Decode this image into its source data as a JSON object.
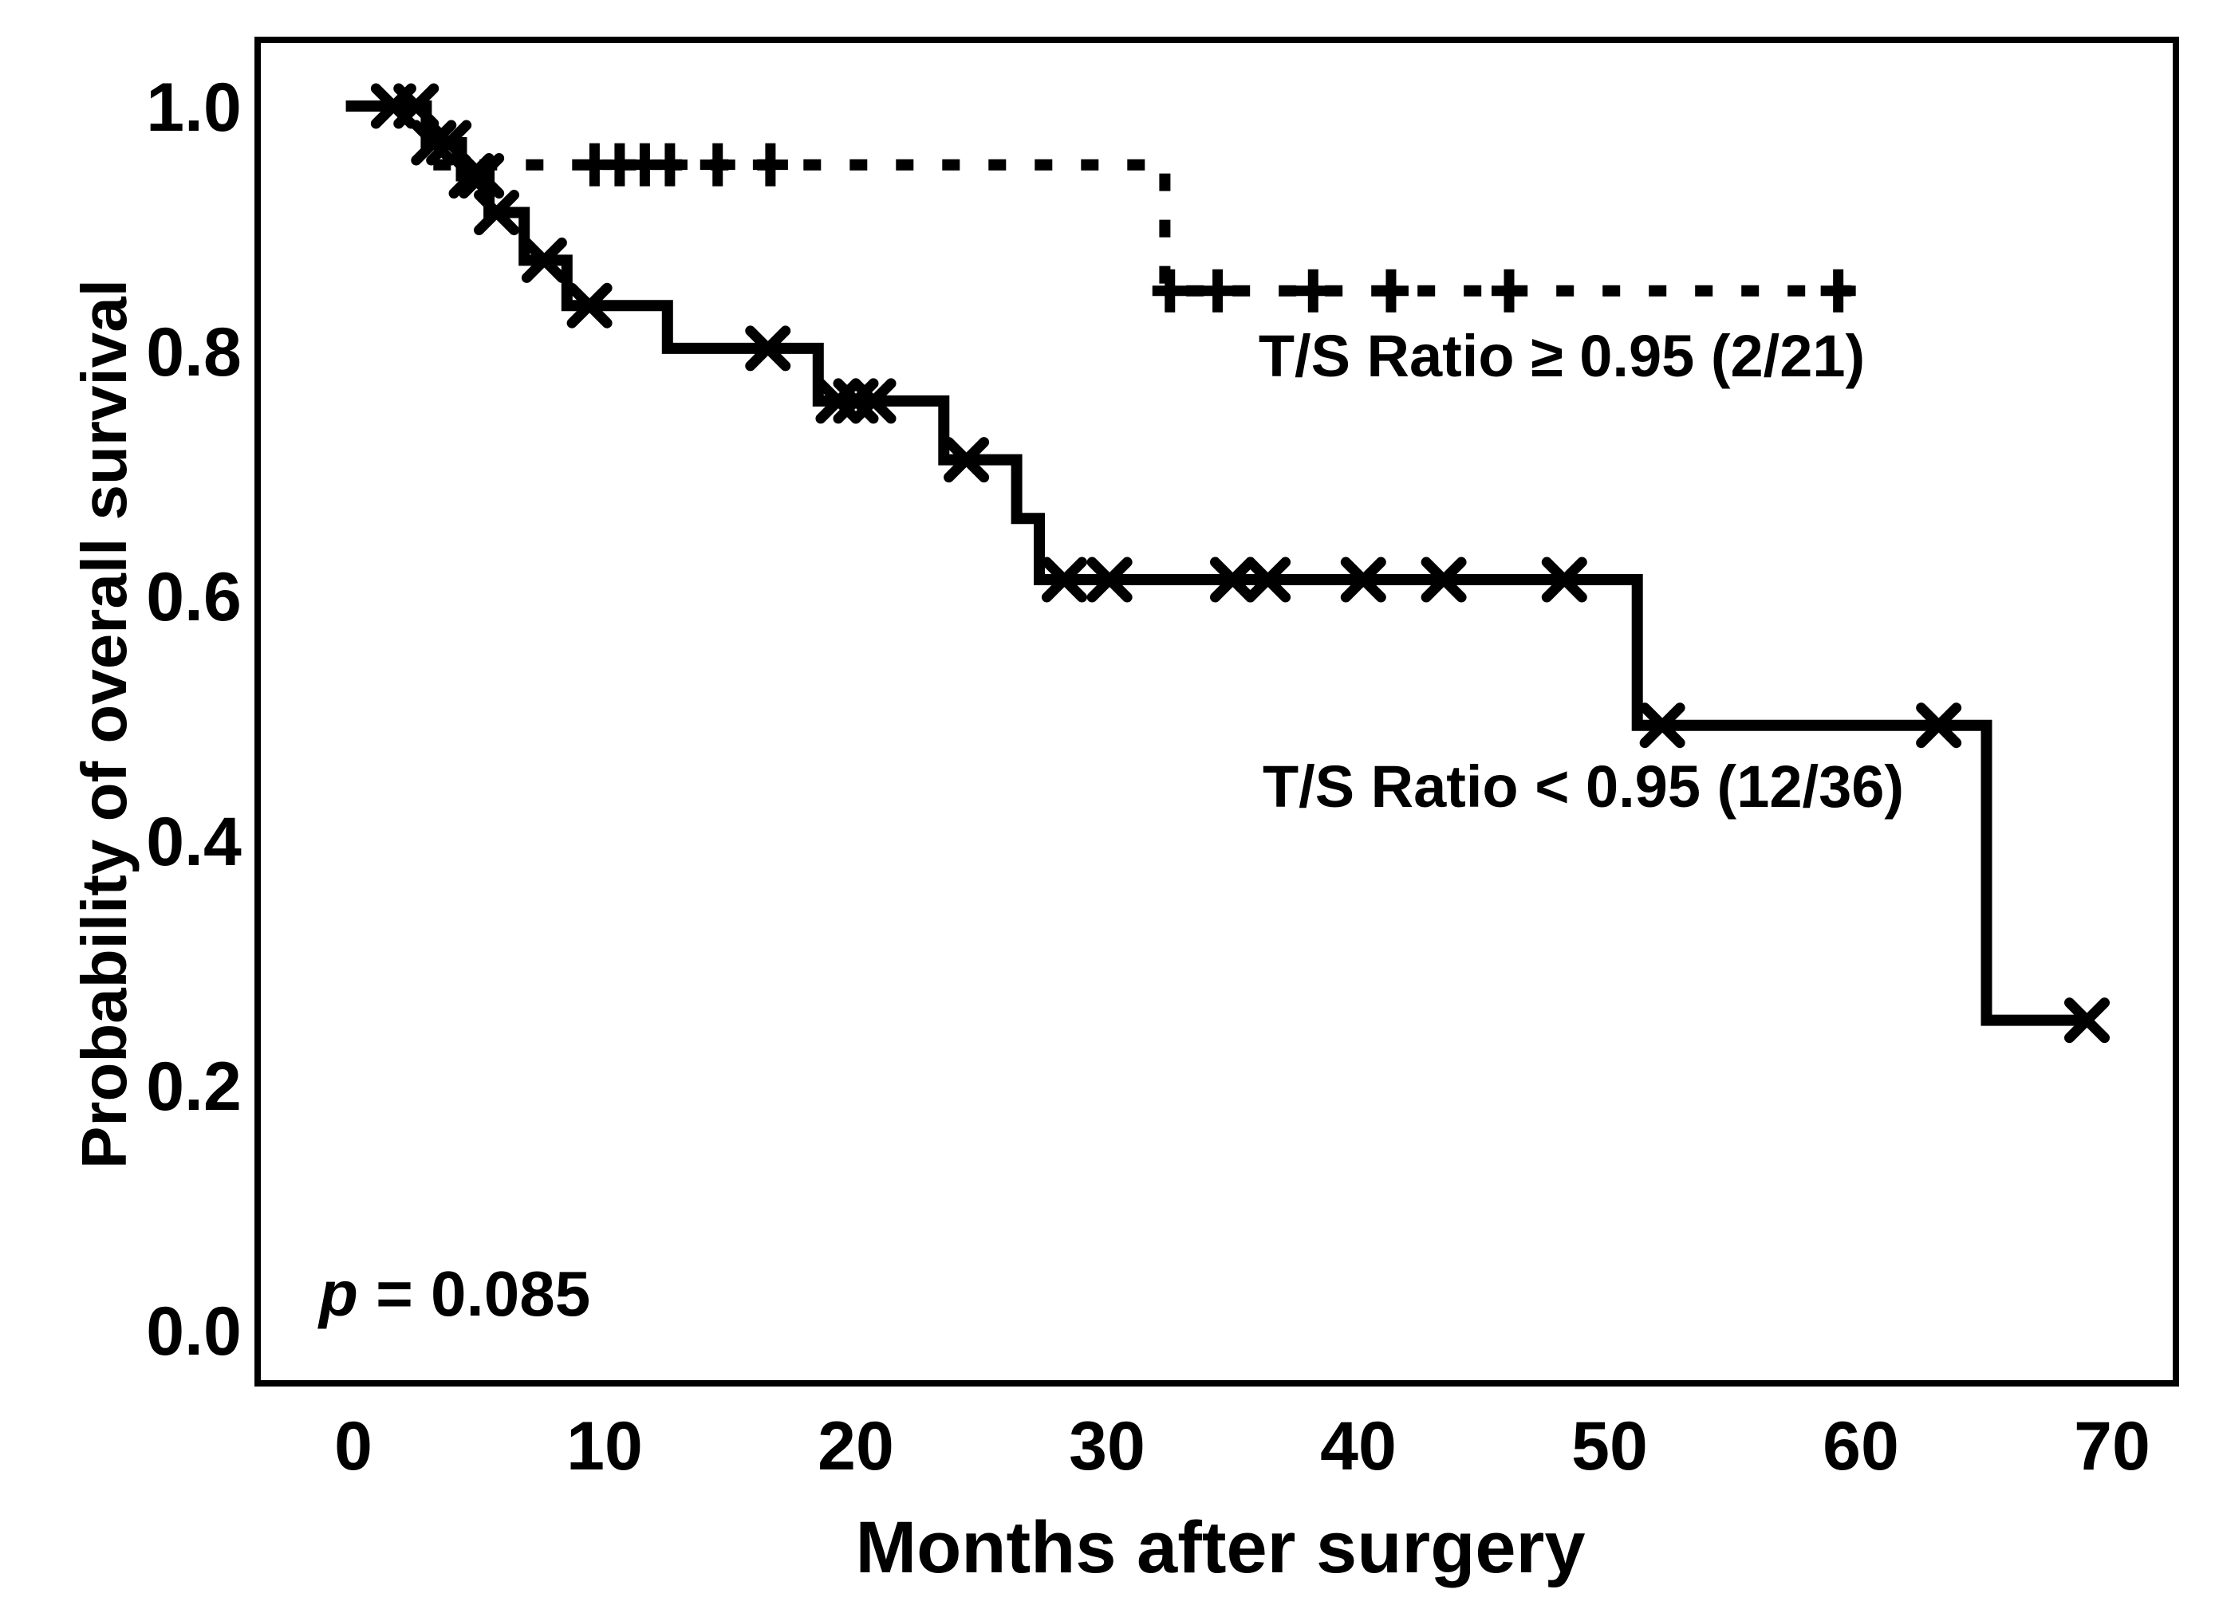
{
  "figure": {
    "background_color": "#ffffff",
    "ink_color": "#000000",
    "p_value_label": {
      "italic_part": "p",
      "rest_part": " = 0.085"
    }
  },
  "chart_data": {
    "type": "line",
    "subtype": "kaplan_meier_step",
    "title": "",
    "xlabel": "Months after surgery",
    "ylabel": "Probability of overall survival",
    "xlim": [
      0,
      72
    ],
    "ylim": [
      0.0,
      1.05
    ],
    "x_ticks": [
      "0",
      "10",
      "20",
      "30",
      "40",
      "50",
      "60",
      "70"
    ],
    "x_tick_values": [
      0,
      10,
      20,
      30,
      40,
      50,
      60,
      70
    ],
    "y_ticks": [
      "1.0",
      "0.8",
      "0.6",
      "0.4",
      "0.2",
      "0.0"
    ],
    "y_tick_values": [
      1.0,
      0.8,
      0.6,
      0.4,
      0.2,
      0.0
    ],
    "grid": false,
    "legend_position": "inline-labels",
    "p_value_text": "p = 0.085",
    "series": [
      {
        "name": "T/S Ratio ≥ 0.95 (2/21)",
        "events_over_n": "2/21",
        "line_style": "dashed",
        "marker": "plus",
        "start": [
          0,
          1.0
        ],
        "drops": [
          [
            3.0,
            0.952
          ],
          [
            32.3,
            0.849
          ]
        ],
        "end_month": 59.8,
        "censor_marks": [
          [
            9.6,
            0.952
          ],
          [
            10.6,
            0.952
          ],
          [
            11.6,
            0.952
          ],
          [
            12.6,
            0.952
          ],
          [
            14.5,
            0.952
          ],
          [
            16.6,
            0.952
          ],
          [
            32.5,
            0.849
          ],
          [
            34.4,
            0.849
          ],
          [
            38.2,
            0.849
          ],
          [
            41.3,
            0.849
          ],
          [
            46.0,
            0.849
          ],
          [
            59.1,
            0.849
          ]
        ]
      },
      {
        "name": "T/S Ratio < 0.95 (12/36)",
        "events_over_n": "12/36",
        "line_style": "solid",
        "marker": "x",
        "start": [
          -0.3,
          1.0
        ],
        "drops": [
          [
            2.9,
            0.97
          ],
          [
            4.3,
            0.943
          ],
          [
            5.4,
            0.913
          ],
          [
            6.8,
            0.874
          ],
          [
            8.5,
            0.837
          ],
          [
            12.5,
            0.802
          ],
          [
            18.5,
            0.759
          ],
          [
            23.5,
            0.711
          ],
          [
            26.4,
            0.663
          ],
          [
            27.3,
            0.613
          ],
          [
            51.1,
            0.494
          ],
          [
            65.0,
            0.253
          ]
        ],
        "end_month": 69.0,
        "censor_marks": [
          [
            1.6,
            1.0
          ],
          [
            2.5,
            1.0
          ],
          [
            3.2,
            0.97
          ],
          [
            3.8,
            0.97
          ],
          [
            4.7,
            0.943
          ],
          [
            5.1,
            0.943
          ],
          [
            5.7,
            0.913
          ],
          [
            7.6,
            0.874
          ],
          [
            9.4,
            0.837
          ],
          [
            16.5,
            0.802
          ],
          [
            19.3,
            0.759
          ],
          [
            20.0,
            0.759
          ],
          [
            20.7,
            0.759
          ],
          [
            24.4,
            0.711
          ],
          [
            28.3,
            0.613
          ],
          [
            30.1,
            0.613
          ],
          [
            35.0,
            0.613
          ],
          [
            36.4,
            0.613
          ],
          [
            40.2,
            0.613
          ],
          [
            43.4,
            0.613
          ],
          [
            48.2,
            0.613
          ],
          [
            52.1,
            0.494
          ],
          [
            63.1,
            0.494
          ],
          [
            69.0,
            0.253
          ]
        ]
      }
    ]
  }
}
